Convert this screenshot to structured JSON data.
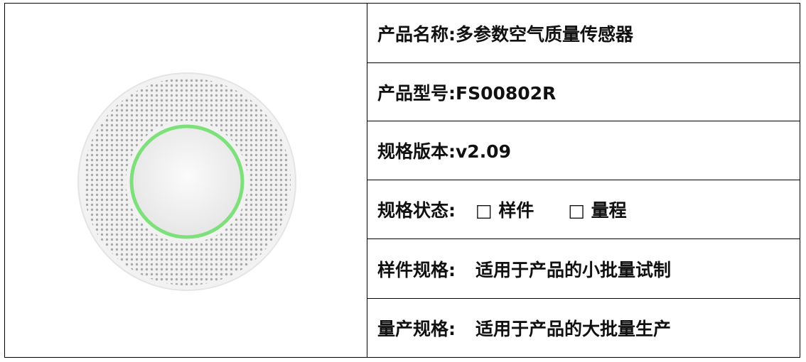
{
  "table": {
    "rows": [
      {
        "text": "产品名称:多参数空气质量传感器"
      },
      {
        "text": "产品型号:FS00802R"
      },
      {
        "text": "规格版本:v2.09"
      },
      {
        "label": "规格状态:",
        "options": [
          "□ 样件",
          "□ 量程"
        ]
      },
      {
        "label": "样件规格:",
        "value": "适用于产品的小批量试制"
      },
      {
        "label": "量产规格:",
        "value": "适用于产品的大批量生产"
      }
    ]
  }
}
